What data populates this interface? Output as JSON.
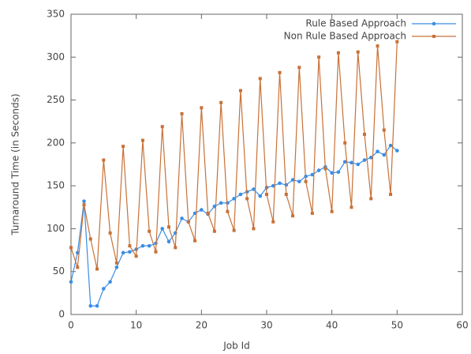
{
  "chart_data": {
    "type": "line",
    "xlabel": "Job Id",
    "ylabel": "Turnaround Time (in Seconds)",
    "x": [
      0,
      1,
      2,
      3,
      4,
      5,
      6,
      7,
      8,
      9,
      10,
      11,
      12,
      13,
      14,
      15,
      16,
      17,
      18,
      19,
      20,
      21,
      22,
      23,
      24,
      25,
      26,
      27,
      28,
      29,
      30,
      31,
      32,
      33,
      34,
      35,
      36,
      37,
      38,
      39,
      40,
      41,
      42,
      43,
      44,
      45,
      46,
      47,
      48,
      49,
      50
    ],
    "series": [
      {
        "name": "Rule Based Approach",
        "color": "#3a8ee6",
        "values": [
          38,
          72,
          132,
          10,
          10,
          30,
          38,
          55,
          72,
          73,
          76,
          80,
          80,
          83,
          100,
          85,
          95,
          112,
          108,
          118,
          122,
          117,
          126,
          130,
          130,
          135,
          140,
          143,
          146,
          138,
          148,
          150,
          153,
          151,
          157,
          155,
          161,
          163,
          168,
          172,
          165,
          166,
          178,
          177,
          175,
          180,
          183,
          190,
          186,
          197,
          191
        ]
      },
      {
        "name": "Non Rule Based Approach",
        "color": "#c87137",
        "values": [
          78,
          55,
          128,
          88,
          53,
          180,
          95,
          60,
          196,
          80,
          68,
          203,
          97,
          73,
          219,
          102,
          78,
          234,
          108,
          86,
          241,
          118,
          97,
          247,
          120,
          98,
          261,
          135,
          100,
          275,
          140,
          108,
          282,
          140,
          115,
          288,
          155,
          118,
          300,
          170,
          120,
          305,
          200,
          125,
          306,
          210,
          135,
          313,
          215,
          140,
          318
        ]
      }
    ],
    "xlim": [
      0,
      60
    ],
    "xticks": [
      0,
      10,
      20,
      30,
      40,
      50,
      60
    ],
    "ylim": [
      0,
      350
    ],
    "yticks": [
      0,
      50,
      100,
      150,
      200,
      250,
      300,
      350
    ],
    "legend": "upper right"
  }
}
